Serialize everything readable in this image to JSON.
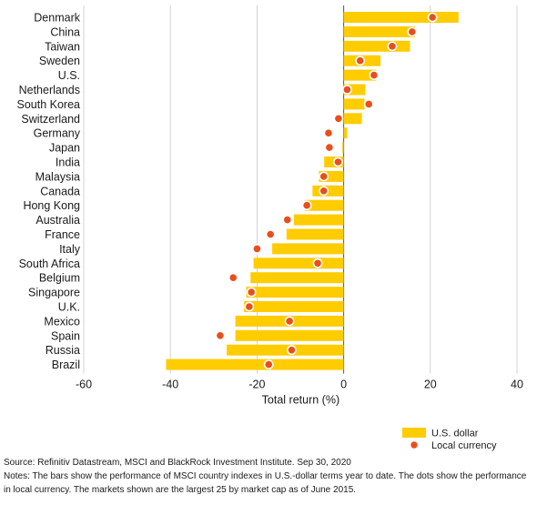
{
  "chart_data": {
    "type": "bar",
    "orientation": "horizontal",
    "xlabel": "Total return (%)",
    "xlim": [
      -60,
      40
    ],
    "xticks": [
      -60,
      -40,
      -20,
      0,
      20,
      40
    ],
    "xtick_labels": [
      "-60",
      "-40",
      "-20",
      "0",
      "20",
      "40"
    ],
    "grid": "vertical",
    "legend_position": "bottom-right",
    "categories": [
      "Denmark",
      "China",
      "Taiwan",
      "Sweden",
      "U.S.",
      "Netherlands",
      "South Korea",
      "Switzerland",
      "Germany",
      "Japan",
      "India",
      "Malaysia",
      "Canada",
      "Hong Kong",
      "Australia",
      "France",
      "Italy",
      "South Africa",
      "Belgium",
      "Singapore",
      "U.K.",
      "Mexico",
      "Spain",
      "Russia",
      "Brazil"
    ],
    "series": [
      {
        "name": "U.S. dollar",
        "mark": "bar",
        "color": "#FFCC00",
        "values": [
          26.5,
          16.5,
          15.3,
          8.5,
          7.5,
          5.0,
          4.8,
          4.2,
          0.8,
          -0.3,
          -4.5,
          -5.7,
          -7.2,
          -9.0,
          -11.5,
          -13.2,
          -16.5,
          -20.8,
          -21.5,
          -22.5,
          -23.0,
          -25.0,
          -25.0,
          -27.0,
          -41.0
        ]
      },
      {
        "name": "Local currency",
        "mark": "dot",
        "color": "#E94E1B",
        "values": [
          20.5,
          15.8,
          11.2,
          3.8,
          7.0,
          0.8,
          5.8,
          -1.2,
          -3.5,
          -3.3,
          -1.3,
          -4.6,
          -4.6,
          -8.5,
          -13.0,
          -16.9,
          -20.0,
          -6.0,
          -25.5,
          -21.3,
          -21.8,
          -12.5,
          -28.5,
          -12.0,
          -17.3
        ]
      }
    ]
  },
  "footer": {
    "source": "Source: Refinitiv Datastream, MSCI and BlackRock Investment Institute. Sep 30, 2020",
    "notes": "Notes: The bars show the performance of MSCI country indexes in U.S.-dollar terms year to date. The dots show the performance in local currency. The markets shown are the largest 25 by market cap as of June 2015."
  }
}
